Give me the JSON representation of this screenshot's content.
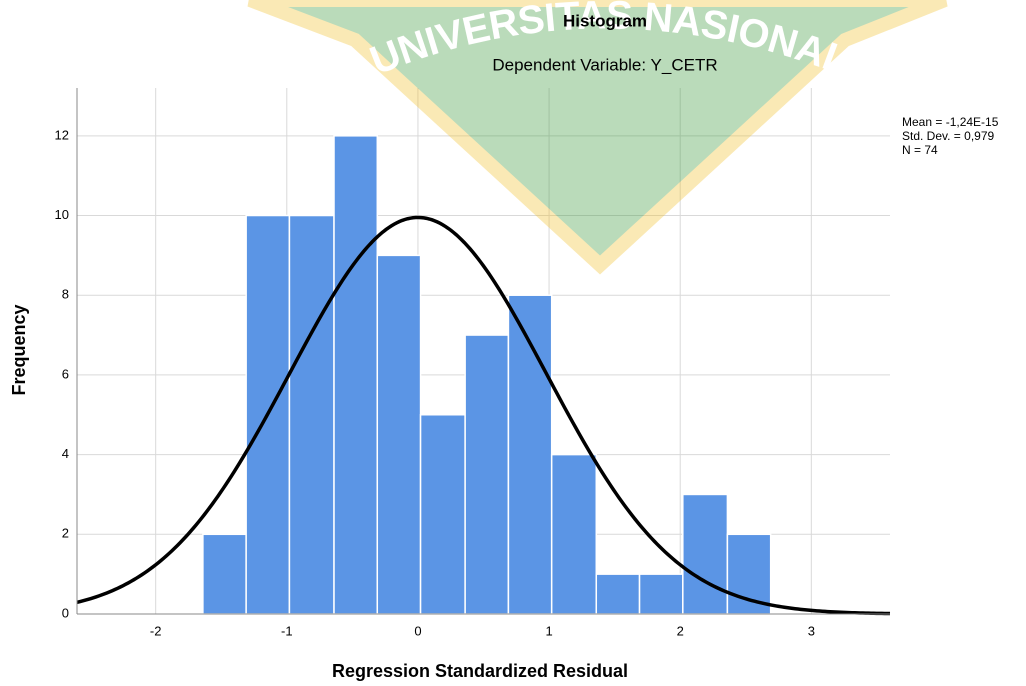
{
  "chart_data": {
    "type": "histogram",
    "title": "Histogram",
    "subtitle": "Dependent Variable: Y_CETR",
    "xlabel": "Regression Standardized Residual",
    "ylabel": "Frequency",
    "watermark": "UNIVERSITAS NASIONAL",
    "bins": [
      -1.64,
      -1.31,
      -0.98,
      -0.64,
      -0.31,
      0.02,
      0.36,
      0.69,
      1.02,
      1.36,
      1.69,
      2.02,
      2.36,
      2.69
    ],
    "values": [
      2,
      10,
      10,
      12,
      9,
      5,
      7,
      8,
      4,
      1,
      1,
      3,
      2
    ],
    "color": "#5b95e5",
    "curve_color": "#000000",
    "stats": [
      {
        "value": -1.24e-15,
        "label": "Mean = -1,24E-15"
      },
      {
        "value": 0.979,
        "label": "Std. Dev. = 0,979"
      },
      {
        "value": 74,
        "label": "N = 74"
      }
    ],
    "xlim": [
      -2.6,
      3.6
    ],
    "ylim": [
      0,
      13.2
    ],
    "xticks": [
      -2,
      -1,
      0,
      1,
      2,
      3
    ],
    "yticks": [
      0,
      2,
      4,
      6,
      8,
      10,
      12
    ],
    "grid": true
  }
}
